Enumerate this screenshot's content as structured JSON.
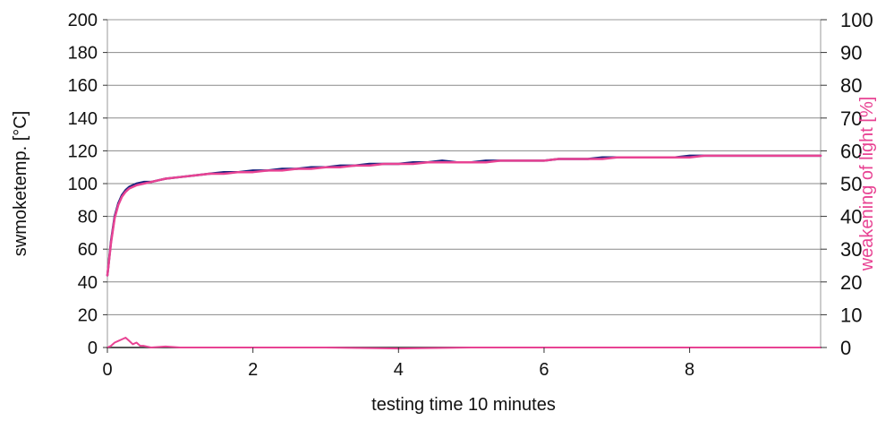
{
  "chart_data": {
    "type": "line",
    "xlabel": "testing time 10 minutes",
    "ylabel_left": "swmoketemp. [°C]",
    "ylabel_right": "weakening of light [%]",
    "xlim": [
      0,
      9.8
    ],
    "ylim_left": [
      0,
      200
    ],
    "ylim_right": [
      0,
      100
    ],
    "x_ticks": [
      0,
      2,
      4,
      6,
      8
    ],
    "y_left_ticks": [
      0,
      20,
      40,
      60,
      80,
      100,
      120,
      140,
      160,
      180,
      200
    ],
    "y_right_ticks": [
      0,
      10,
      20,
      30,
      40,
      50,
      60,
      70,
      80,
      90,
      100
    ],
    "grid": "horizontal",
    "series": [
      {
        "axis": "left",
        "color": "#1a237e",
        "x": [
          0,
          0.05,
          0.1,
          0.15,
          0.2,
          0.25,
          0.3,
          0.4,
          0.5,
          0.6,
          0.7,
          0.8,
          1.0,
          1.2,
          1.4,
          1.6,
          1.8,
          2.0,
          2.2,
          2.4,
          2.6,
          2.8,
          3.0,
          3.2,
          3.4,
          3.6,
          3.8,
          4.0,
          4.2,
          4.4,
          4.6,
          4.8,
          5.0,
          5.2,
          5.4,
          5.6,
          5.8,
          6.0,
          6.2,
          6.4,
          6.6,
          6.8,
          7.0,
          7.2,
          7.4,
          7.6,
          7.8,
          8.0,
          8.2,
          8.4,
          8.6,
          8.8,
          9.0,
          9.2,
          9.4,
          9.6,
          9.8
        ],
        "values": [
          44,
          65,
          80,
          88,
          93,
          96,
          98,
          100,
          101,
          101,
          102,
          103,
          104,
          105,
          106,
          107,
          107,
          108,
          108,
          109,
          109,
          110,
          110,
          111,
          111,
          112,
          112,
          112,
          113,
          113,
          114,
          113,
          113,
          114,
          114,
          114,
          114,
          114,
          115,
          115,
          115,
          116,
          116,
          116,
          116,
          116,
          116,
          117,
          117,
          117,
          117,
          117,
          117,
          117,
          117,
          117,
          117
        ]
      },
      {
        "axis": "left",
        "color": "#e84393",
        "x": [
          0,
          0.05,
          0.1,
          0.15,
          0.2,
          0.25,
          0.3,
          0.4,
          0.5,
          0.6,
          0.7,
          0.8,
          1.0,
          1.2,
          1.4,
          1.6,
          1.8,
          2.0,
          2.2,
          2.4,
          2.6,
          2.8,
          3.0,
          3.2,
          3.4,
          3.6,
          3.8,
          4.0,
          4.2,
          4.4,
          4.6,
          4.8,
          5.0,
          5.2,
          5.4,
          5.6,
          5.8,
          6.0,
          6.2,
          6.4,
          6.6,
          6.8,
          7.0,
          7.2,
          7.4,
          7.6,
          7.8,
          8.0,
          8.2,
          8.4,
          8.6,
          8.8,
          9.0,
          9.2,
          9.4,
          9.6,
          9.8
        ],
        "values": [
          44,
          64,
          79,
          87,
          92,
          95,
          97,
          99,
          100,
          101,
          102,
          103,
          104,
          105,
          106,
          106,
          107,
          107,
          108,
          108,
          109,
          109,
          110,
          110,
          111,
          111,
          112,
          112,
          112,
          113,
          113,
          113,
          113,
          113,
          114,
          114,
          114,
          114,
          115,
          115,
          115,
          115,
          116,
          116,
          116,
          116,
          116,
          116,
          117,
          117,
          117,
          117,
          117,
          117,
          117,
          117,
          117
        ]
      },
      {
        "axis": "right",
        "color": "#e84393",
        "x": [
          0,
          0.05,
          0.1,
          0.15,
          0.2,
          0.25,
          0.3,
          0.35,
          0.4,
          0.45,
          0.5,
          0.6,
          0.8,
          1.0,
          1.5,
          2.0,
          3.0,
          4.0,
          5.0,
          6.0,
          7.0,
          8.0,
          9.0,
          9.8
        ],
        "values": [
          0,
          0.5,
          1.5,
          2,
          2.5,
          3,
          2,
          1,
          1.5,
          0.5,
          0.5,
          0,
          0.3,
          0,
          0,
          0,
          0,
          -0.3,
          0,
          0,
          0,
          0,
          0,
          0
        ]
      },
      {
        "axis": "right",
        "color": "#555555",
        "x": [
          0,
          1,
          2,
          3,
          4,
          5,
          6,
          7,
          8,
          9,
          9.8
        ],
        "values": [
          0,
          0,
          0,
          0,
          0,
          0,
          0,
          0,
          0,
          0,
          0
        ]
      }
    ]
  }
}
